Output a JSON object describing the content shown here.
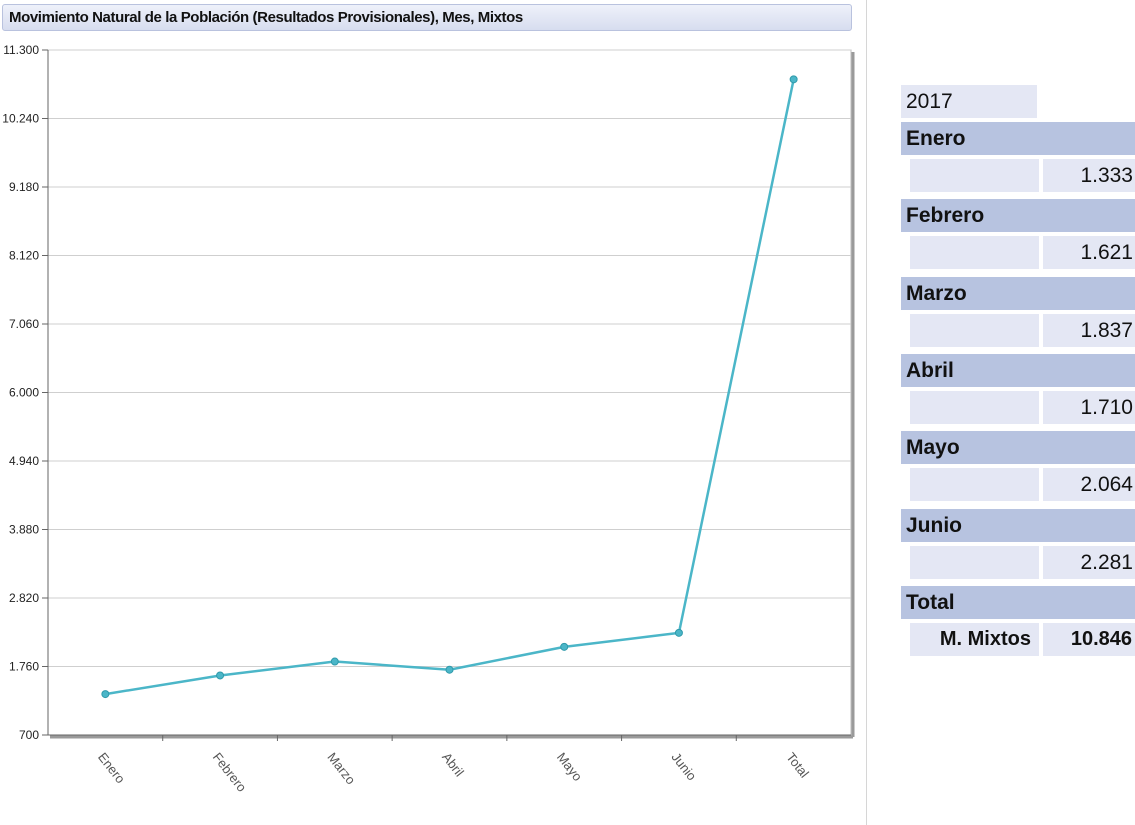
{
  "chart_data": {
    "type": "line",
    "title": "Movimiento Natural de la Población (Resultados Provisionales), Mes, Mixtos",
    "categories": [
      "Enero",
      "Febrero",
      "Marzo",
      "Abril",
      "Mayo",
      "Junio",
      "Total"
    ],
    "series": [
      {
        "values": [
          1333,
          1621,
          1837,
          1710,
          2064,
          2281,
          10846
        ]
      }
    ],
    "yticks": [
      "700",
      "1.760",
      "2.820",
      "3.880",
      "4.940",
      "6.000",
      "7.060",
      "8.120",
      "9.180",
      "10.240",
      "11.300"
    ],
    "ylim": [
      700,
      11300
    ],
    "grid": true,
    "line_color": "#4bb6c8"
  },
  "table": {
    "year": "2017",
    "rows": [
      {
        "label": "Enero",
        "value": "1.333"
      },
      {
        "label": "Febrero",
        "value": "1.621"
      },
      {
        "label": "Marzo",
        "value": "1.837"
      },
      {
        "label": "Abril",
        "value": "1.710"
      },
      {
        "label": "Mayo",
        "value": "2.064"
      },
      {
        "label": "Junio",
        "value": "2.281"
      }
    ],
    "total_heading": "Total",
    "total_label": "M. Mixtos",
    "total_value": "10.846"
  }
}
